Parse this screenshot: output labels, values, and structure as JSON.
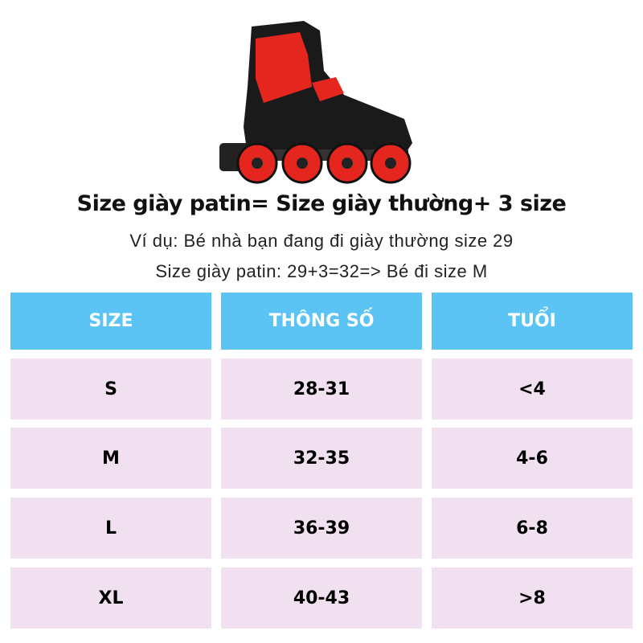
{
  "title": "Size giày patin= Size giày thường+ 3 size",
  "example_line": "Ví dụ: Bé nhà bạn đang đi giày thường size 29",
  "calc_line": "Size giày patin: 29+3=32=> Bé đi size M",
  "colors": {
    "header_bg": "#5bc4f5",
    "row_bg": "#f1e0ef",
    "skate_red": "#e5261f",
    "skate_black": "#1a1a1a"
  },
  "table": {
    "headers": [
      "SIZE",
      "THÔNG SỐ",
      "TUỔI"
    ],
    "rows": [
      [
        "S",
        "28-31",
        "<4"
      ],
      [
        "M",
        "32-35",
        "4-6"
      ],
      [
        "L",
        "36-39",
        "6-8"
      ],
      [
        "XL",
        "40-43",
        ">8"
      ]
    ]
  }
}
